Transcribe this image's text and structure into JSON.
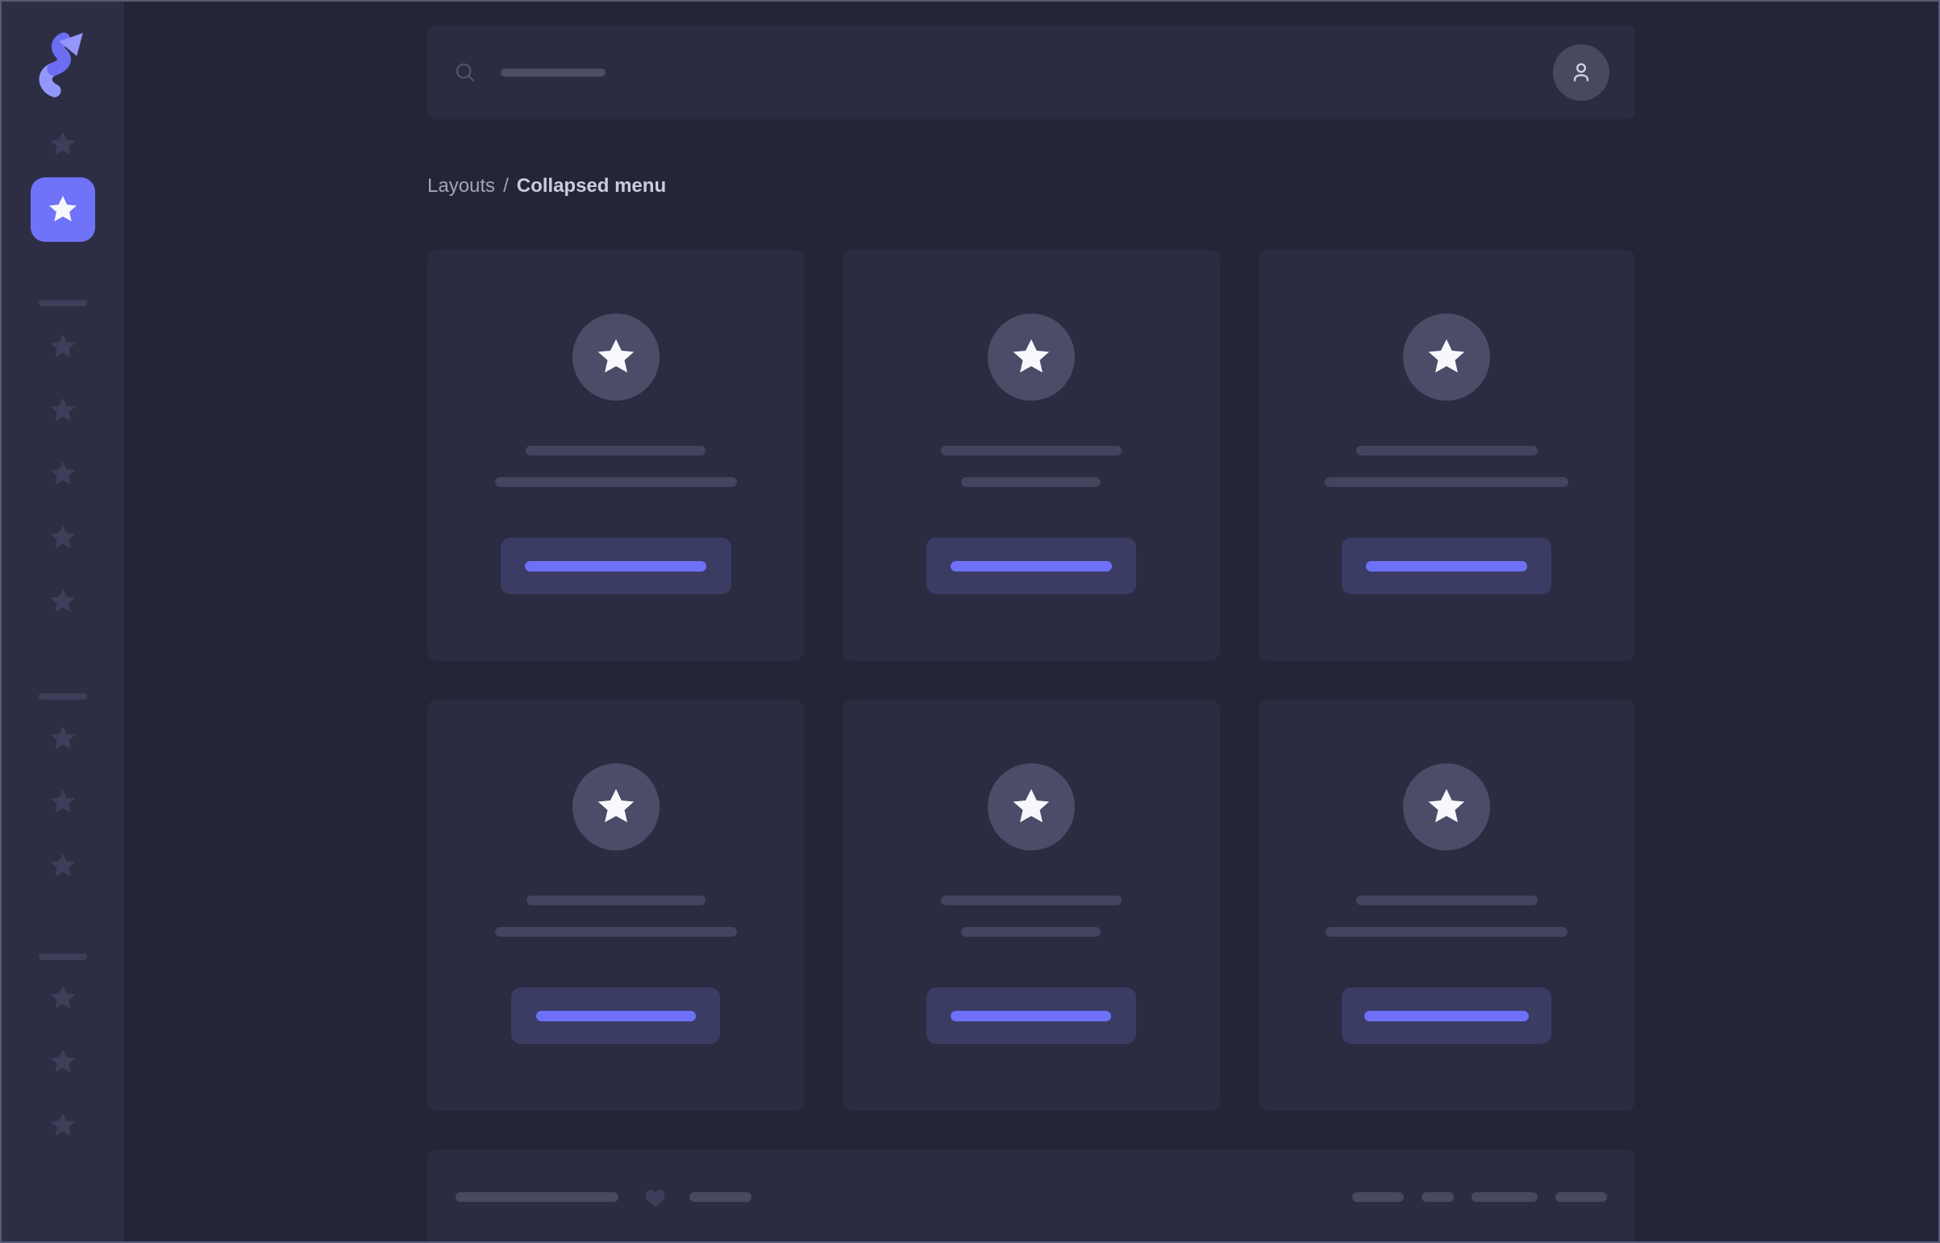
{
  "breadcrumb": {
    "parent": "Layouts",
    "separator": "/",
    "current": "Collapsed menu"
  },
  "sidebar": {
    "logo_icon": "s-arrow-logo",
    "items": [
      {
        "type": "star",
        "gap": 39
      },
      {
        "type": "star",
        "active": true,
        "gap": 23
      },
      {
        "type": "divider",
        "gap": 72
      },
      {
        "type": "star",
        "gap": 32
      },
      {
        "type": "star",
        "gap": 43
      },
      {
        "type": "star",
        "gap": 43
      },
      {
        "type": "star",
        "gap": 43
      },
      {
        "type": "star",
        "gap": 43
      },
      {
        "type": "divider",
        "gap": 96
      },
      {
        "type": "star",
        "gap": 30
      },
      {
        "type": "star",
        "gap": 43
      },
      {
        "type": "star",
        "gap": 43
      },
      {
        "type": "divider",
        "gap": 91
      },
      {
        "type": "star",
        "gap": 29
      },
      {
        "type": "star",
        "gap": 43
      },
      {
        "type": "star",
        "gap": 43
      }
    ]
  },
  "topbar": {
    "search_icon": "search-icon",
    "placeholder_line_width": 130,
    "avatar_icon": "person-icon"
  },
  "cards": [
    {
      "icon": "star-icon",
      "line1_width": 223,
      "line2_width": 300,
      "button_width": 286,
      "button_line_width": 225
    },
    {
      "icon": "star-icon",
      "line1_width": 224,
      "line2_width": 173,
      "button_width": 260,
      "button_line_width": 200
    },
    {
      "icon": "star-icon",
      "line1_width": 225,
      "line2_width": 302,
      "button_width": 260,
      "button_line_width": 200
    },
    {
      "icon": "star-icon",
      "line1_width": 222,
      "line2_width": 300,
      "button_width": 259,
      "button_line_width": 198
    },
    {
      "icon": "star-icon",
      "line1_width": 224,
      "line2_width": 173,
      "button_width": 260,
      "button_line_width": 199
    },
    {
      "icon": "star-icon",
      "line1_width": 225,
      "line2_width": 300,
      "button_width": 260,
      "button_line_width": 204
    }
  ],
  "footer": {
    "left_line_width": 202,
    "heart_icon": "heart-icon",
    "small_line_width": 77,
    "right_line_widths": [
      64,
      40,
      82,
      64
    ]
  },
  "colors": {
    "frame_border": "#565a72",
    "sidebar_bg": "#2d2e44",
    "main_bg": "#242537",
    "panel_bg": "#2b2c41",
    "skeleton": "#43455e",
    "skeleton_footer": "#474961",
    "search_line": "#4c4e68",
    "icon_muted": "#51536c",
    "dim_star": "#3d3f5a",
    "divider": "#3d3f5a",
    "circle_bg": "#4b4d68",
    "avatar_bg": "#474961",
    "avatar_icon": "#cfd0e2",
    "accent": "#6f73f7",
    "accent_line": "#6e71f7",
    "button_bg": "#3a3c64",
    "text_muted": "#a3a4ba",
    "text_bright": "#cbccdf",
    "logo_dark": "#6b6ef3",
    "logo_light": "#9396fa",
    "star_white": "#f8f8fc"
  }
}
